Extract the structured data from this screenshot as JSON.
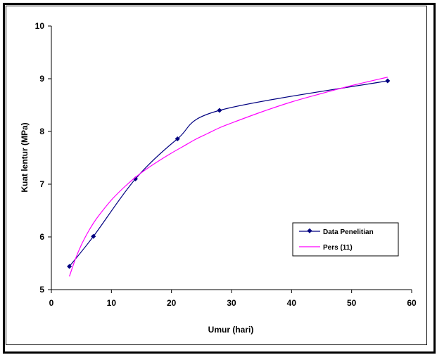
{
  "chart_data": {
    "type": "line",
    "xlabel": "Umur (hari)",
    "ylabel": "Kuat lentur (MPa)",
    "xlim": [
      0,
      60
    ],
    "ylim": [
      5,
      10
    ],
    "xticks": [
      0,
      10,
      20,
      30,
      40,
      50,
      60
    ],
    "yticks": [
      5,
      6,
      7,
      8,
      9,
      10
    ],
    "grid": false,
    "legend_position": "right",
    "series": [
      {
        "name": "Data Penelitian",
        "color": "#000080",
        "marker": "diamond",
        "x": [
          3,
          7,
          14,
          21,
          28,
          56
        ],
        "y": [
          5.44,
          6.01,
          7.1,
          7.86,
          8.4,
          8.96
        ]
      },
      {
        "name": "Pers (11)",
        "color": "#ff00ff",
        "marker": "none",
        "x": [
          3,
          4,
          5,
          6,
          7,
          8,
          10,
          12,
          14,
          16,
          18,
          20,
          22,
          24,
          26,
          28,
          30,
          35,
          40,
          45,
          50,
          56
        ],
        "y": [
          5.25,
          5.58,
          5.85,
          6.07,
          6.26,
          6.42,
          6.7,
          6.93,
          7.13,
          7.3,
          7.45,
          7.59,
          7.72,
          7.85,
          7.96,
          8.07,
          8.16,
          8.37,
          8.56,
          8.72,
          8.87,
          9.03
        ]
      }
    ]
  }
}
